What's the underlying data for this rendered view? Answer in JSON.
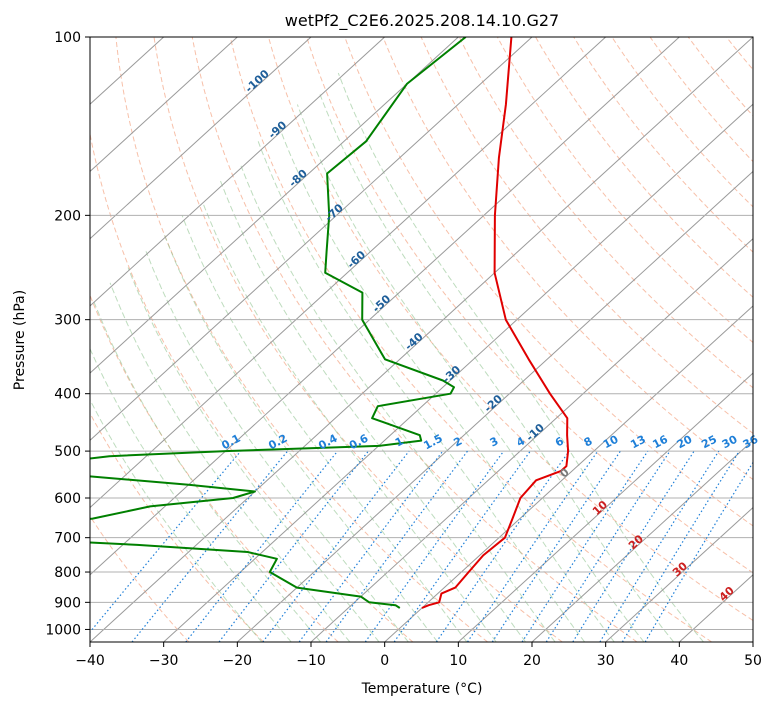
{
  "chart_data": {
    "type": "line",
    "title": "wetPf2_C2E6.2025.208.14.10.G27",
    "xlabel": "Temperature (°C)",
    "ylabel": "Pressure (hPa)",
    "xlim": [
      -40,
      50
    ],
    "ylim": [
      1050,
      100
    ],
    "y_scale": "log",
    "x_ticks": [
      -40,
      -30,
      -20,
      -10,
      0,
      10,
      20,
      30,
      40,
      50
    ],
    "y_ticks": [
      100,
      200,
      300,
      400,
      500,
      600,
      700,
      800,
      900,
      1000
    ],
    "grid": true,
    "skew": true,
    "colors": {
      "temperature": "#e00000",
      "dewpoint": "#008000",
      "isotherm": "#9a9a9a",
      "dry_adiabat": "#f4a584",
      "moist_adiabat": "#88c088",
      "mixing_ratio": "#1e7fd8",
      "isotherm_label": "#1f5f9a",
      "zero_label": "#7a7a7a",
      "warm_label": "#cc2020"
    },
    "isotherm_labels": [
      "-100",
      "-90",
      "-80",
      "-70",
      "-60",
      "-50",
      "-40",
      "-30",
      "-20",
      "-10",
      "0",
      "10",
      "20",
      "30",
      "40"
    ],
    "mixing_ratio_labels": [
      "0.1",
      "0.2",
      "0.4",
      "0.6",
      "1",
      "1.5",
      "2",
      "3",
      "4",
      "6",
      "8",
      "10",
      "13",
      "16",
      "20",
      "25",
      "30",
      "36"
    ],
    "series": [
      {
        "key": "temperature",
        "pressure": [
          100,
          130,
          160,
          200,
          250,
          300,
          350,
          400,
          440,
          470,
          500,
          530,
          540,
          560,
          600,
          650,
          700,
          750,
          800,
          850,
          870,
          900,
          910,
          920
        ],
        "values": [
          -72.8,
          -63.5,
          -56.5,
          -48.5,
          -40.0,
          -31.5,
          -22.5,
          -14.5,
          -8.5,
          -6.0,
          -3.5,
          -1.5,
          -1.5,
          -3.5,
          -3.0,
          -1.0,
          0.8,
          0.5,
          1.0,
          1.5,
          0.5,
          1.5,
          0.5,
          0.0
        ]
      },
      {
        "key": "dewpoint",
        "pressure": [
          100,
          120,
          150,
          170,
          200,
          230,
          250,
          270,
          300,
          350,
          380,
          390,
          400,
          420,
          440,
          470,
          480,
          490,
          495,
          500,
          510,
          530,
          540,
          550,
          570,
          585,
          600,
          620,
          650,
          670,
          680,
          700,
          720,
          740,
          760,
          800,
          850,
          880,
          900,
          910,
          920
        ],
        "values": [
          -79.0,
          -80.0,
          -77.0,
          -77.5,
          -71.0,
          -66.0,
          -63.0,
          -55.0,
          -51.0,
          -42.0,
          -31.0,
          -28.5,
          -28.0,
          -36.0,
          -35.0,
          -26.0,
          -25.0,
          -30.0,
          -40.0,
          -50.0,
          -65.0,
          -75.0,
          -74.0,
          -66.0,
          -50.0,
          -40.0,
          -42.0,
          -52.0,
          -58.0,
          -66.0,
          -76.0,
          -68.0,
          -48.0,
          -32.0,
          -27.0,
          -26.0,
          -20.0,
          -10.0,
          -8.0,
          -4.0,
          -3.0
        ]
      }
    ]
  }
}
